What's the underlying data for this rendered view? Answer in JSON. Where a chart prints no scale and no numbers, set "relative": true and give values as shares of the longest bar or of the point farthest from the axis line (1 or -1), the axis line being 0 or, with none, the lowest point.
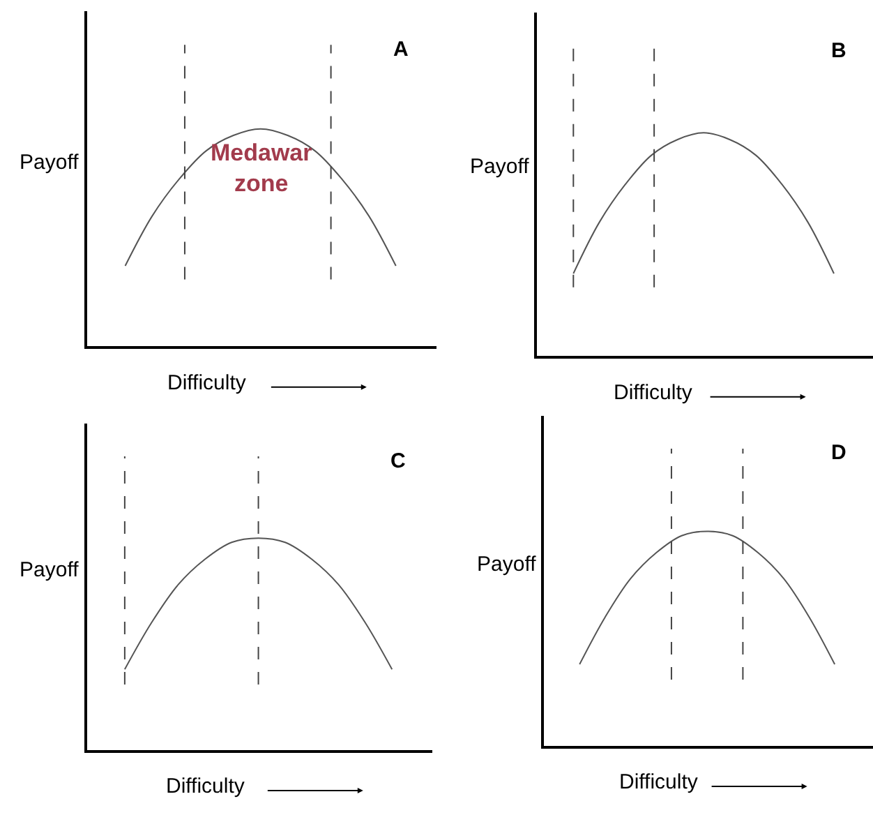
{
  "chart_data": [
    {
      "type": "line",
      "title": "A",
      "xlabel": "Difficulty",
      "ylabel": "Payoff",
      "relative": true,
      "categories": [
        null,
        null,
        null,
        null,
        null,
        null,
        null,
        null,
        null,
        null,
        null
      ],
      "series": [
        {
          "color": "#555555",
          "values": [
            0.37,
            0.6,
            0.77,
            0.9,
            0.97,
            1,
            0.97,
            0.9,
            0.77,
            0.6,
            0.37
          ]
        }
      ],
      "annotations": [
        "Medawar\nzone"
      ],
      "marker": "none"
    },
    {
      "type": "line",
      "title": "B",
      "xlabel": "Difficulty",
      "ylabel": "Payoff",
      "relative": true,
      "categories": [
        null,
        null,
        null,
        null,
        null,
        null,
        null,
        null,
        null,
        null,
        null
      ],
      "series": [
        {
          "color": "#555555",
          "values": [
            0.37,
            0.6,
            0.77,
            0.9,
            0.97,
            1,
            0.97,
            0.9,
            0.77,
            0.6,
            0.37
          ]
        }
      ],
      "marker": "none"
    },
    {
      "type": "line",
      "title": "C",
      "xlabel": "Difficulty",
      "ylabel": "Payoff",
      "relative": true,
      "categories": [
        null,
        null,
        null,
        null,
        null,
        null,
        null,
        null,
        null,
        null,
        null
      ],
      "series": [
        {
          "color": "#555555",
          "values": [
            0.38,
            0.6,
            0.78,
            0.9,
            0.98,
            1,
            0.98,
            0.9,
            0.78,
            0.6,
            0.38
          ]
        }
      ],
      "marker": "none"
    },
    {
      "type": "line",
      "title": "D",
      "xlabel": "Difficulty",
      "ylabel": "Payoff",
      "relative": true,
      "categories": [
        null,
        null,
        null,
        null,
        null,
        null,
        null,
        null,
        null,
        null,
        null
      ],
      "series": [
        {
          "color": "#555555",
          "values": [
            0.38,
            0.6,
            0.78,
            0.9,
            0.98,
            1,
            0.98,
            0.9,
            0.78,
            0.6,
            0.38
          ]
        }
      ],
      "marker": "none"
    }
  ]
}
